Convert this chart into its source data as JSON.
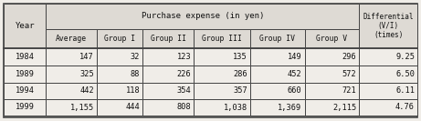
{
  "title_row": "Purchase expense (in yen)",
  "diff_header": "Differential\n(V/I)\n(times)",
  "year_header": "Year",
  "sub_headers": [
    "Average",
    "Group I",
    "Group II",
    "Group III",
    "Group IV",
    "Group V"
  ],
  "rows": [
    [
      "1984",
      "147",
      "32",
      "123",
      "135",
      "149",
      "296",
      "9.25"
    ],
    [
      "1989",
      "325",
      "88",
      "226",
      "286",
      "452",
      "572",
      "6.50"
    ],
    [
      "1994",
      "442",
      "118",
      "354",
      "357",
      "660",
      "721",
      "6.11"
    ],
    [
      "1999",
      "1,155",
      "444",
      "808",
      "1,038",
      "1,369",
      "2,115",
      "4.76"
    ]
  ],
  "bg_color": "#f0ede8",
  "header_bg": "#dedad4",
  "border_color": "#444444",
  "text_color": "#111111",
  "figsize": [
    4.61,
    1.33
  ],
  "dpi": 100
}
